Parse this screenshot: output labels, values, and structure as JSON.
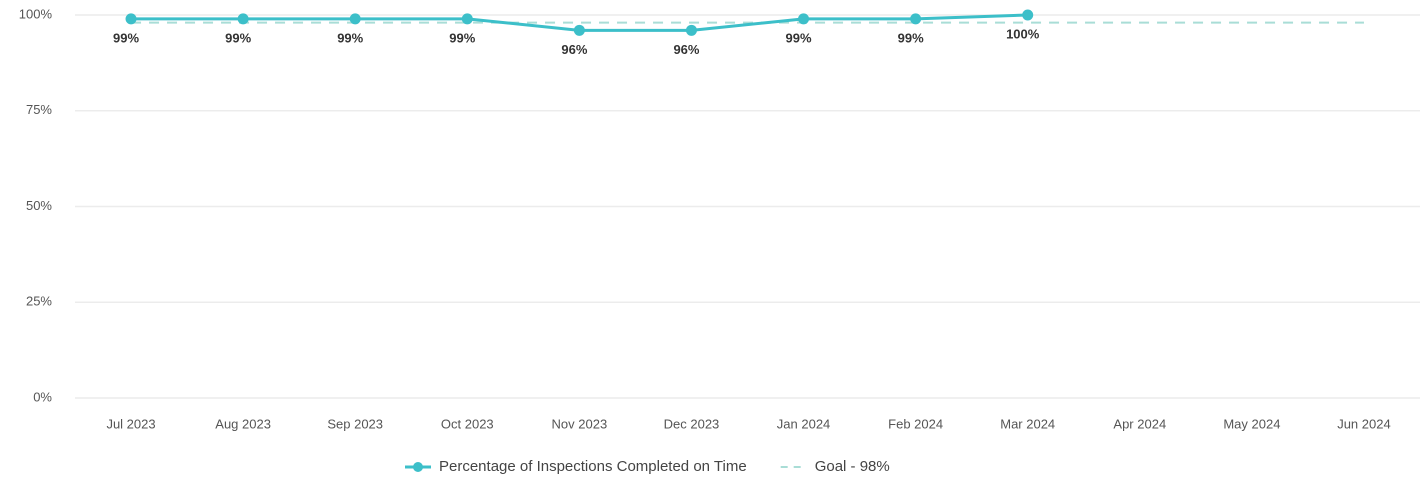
{
  "chart_data": {
    "type": "line",
    "categories": [
      "Jul 2023",
      "Aug 2023",
      "Sep 2023",
      "Oct 2023",
      "Nov 2023",
      "Dec 2023",
      "Jan 2024",
      "Feb 2024",
      "Mar 2024",
      "Apr 2024",
      "May 2024",
      "Jun 2024"
    ],
    "series": [
      {
        "name": "Percentage of Inspections Completed on Time",
        "color": "#3cbfc9",
        "values": [
          99,
          99,
          99,
          99,
          96,
          96,
          99,
          99,
          100,
          null,
          null,
          null
        ],
        "value_labels": [
          "99%",
          "99%",
          "99%",
          "99%",
          "96%",
          "96%",
          "99%",
          "99%",
          "100%",
          null,
          null,
          null
        ]
      },
      {
        "name": "Goal - 98%",
        "color": "#a9ddd6",
        "dashed": true,
        "values": [
          98,
          98,
          98,
          98,
          98,
          98,
          98,
          98,
          98,
          98,
          98,
          98
        ]
      }
    ],
    "ylim": [
      0,
      100
    ],
    "yticks": [
      {
        "value": 0,
        "label": "0%"
      },
      {
        "value": 25,
        "label": "25%"
      },
      {
        "value": 50,
        "label": "50%"
      },
      {
        "value": 75,
        "label": "75%"
      },
      {
        "value": 100,
        "label": "100%"
      }
    ],
    "grid": true,
    "legend": "bottom"
  }
}
